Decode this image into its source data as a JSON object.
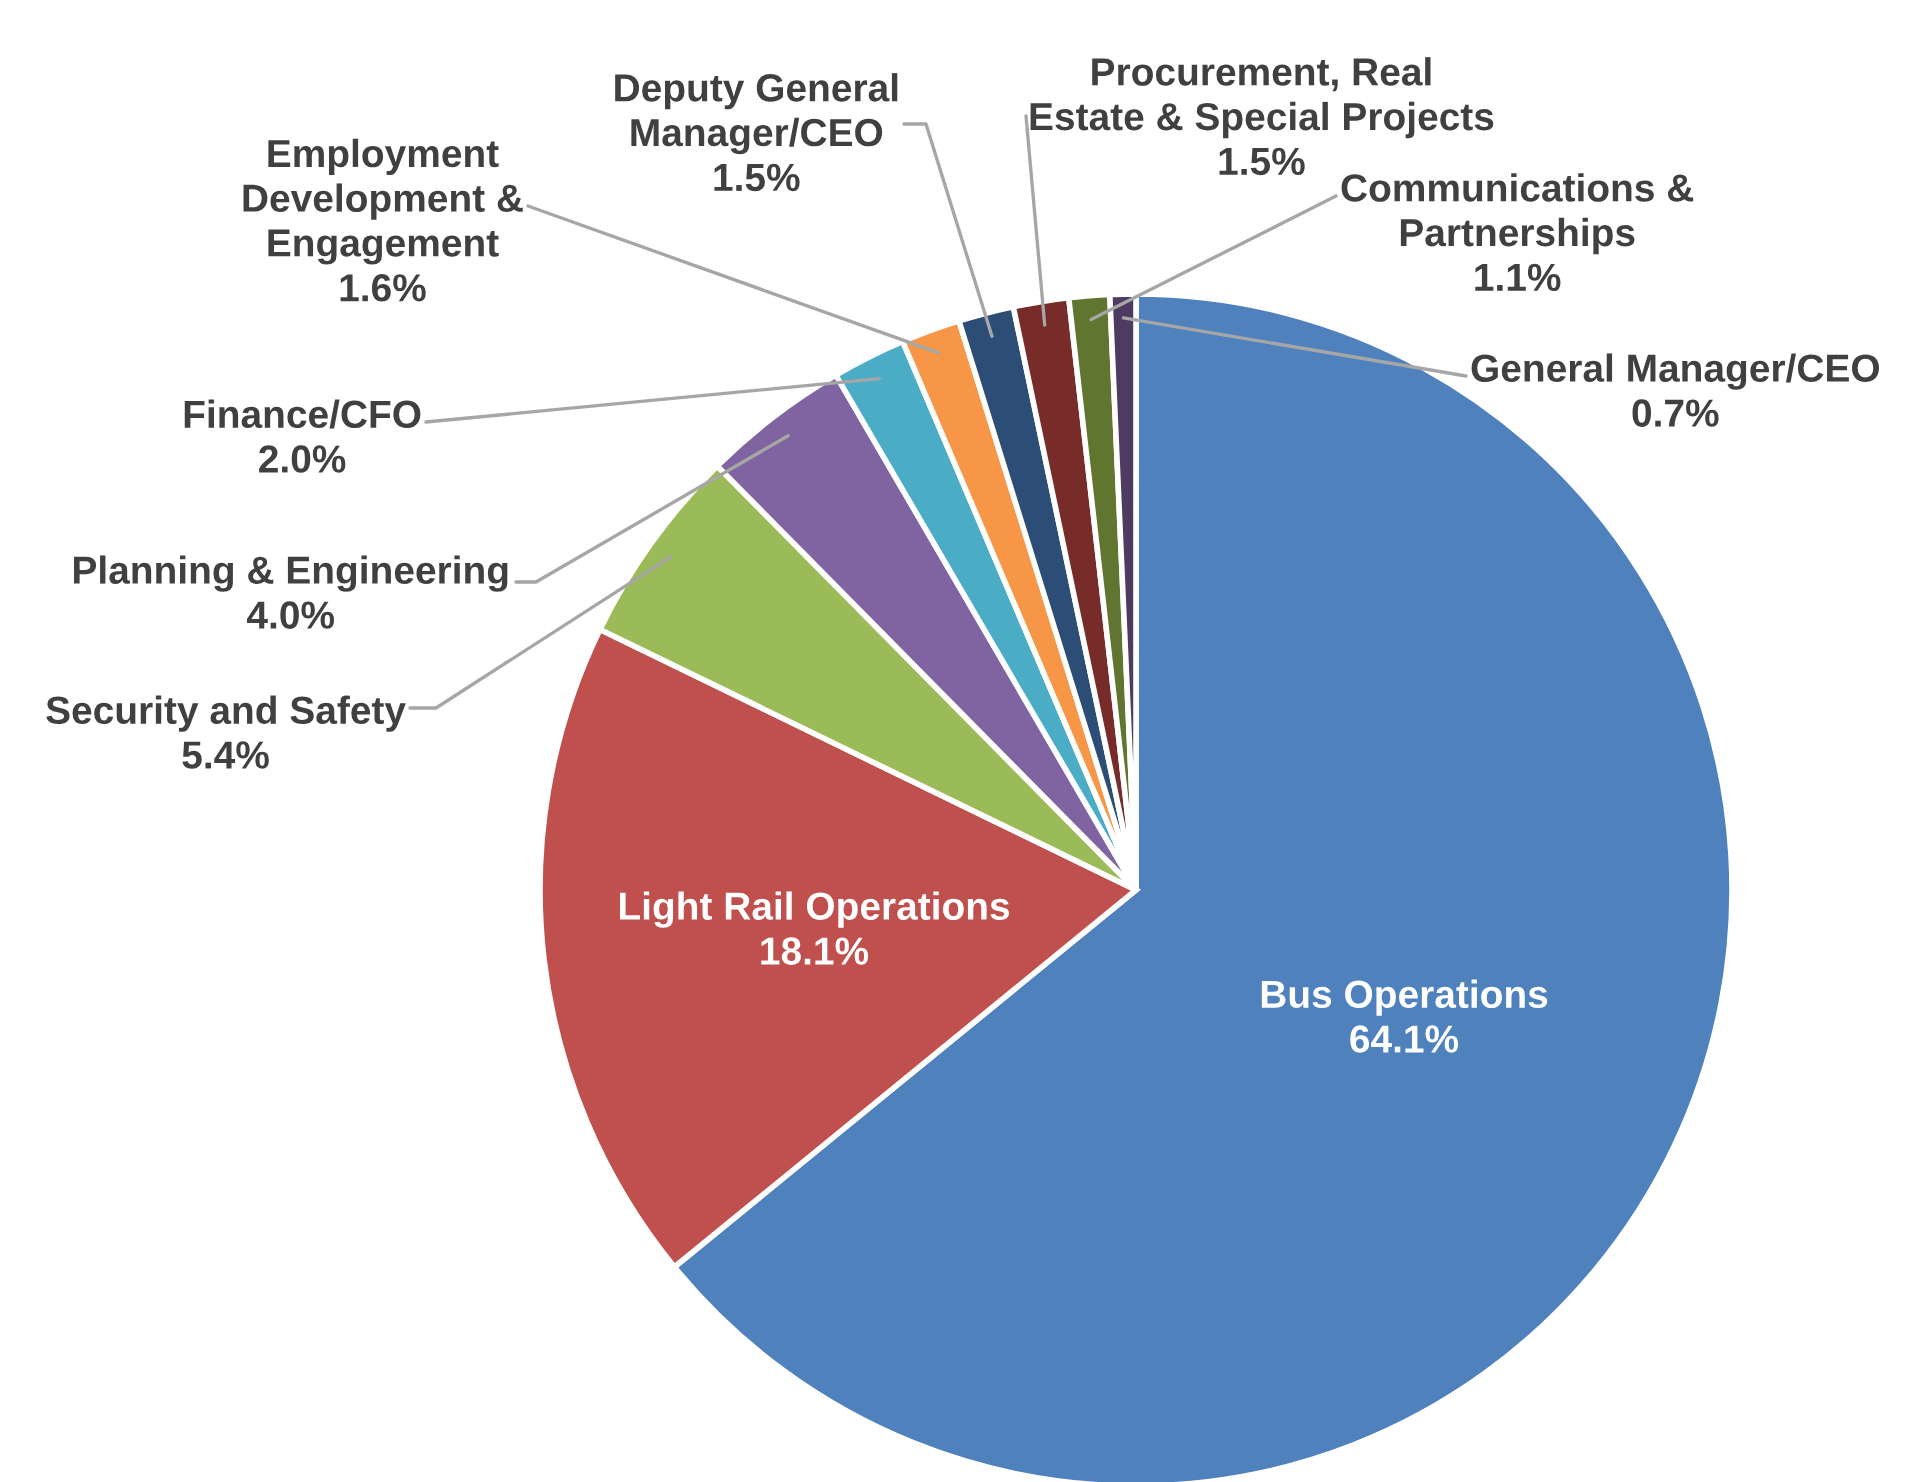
{
  "chart_data": {
    "type": "pie",
    "categories": [
      "Bus Operations",
      "Light Rail Operations",
      "Security and Safety",
      "Planning & Engineering",
      "Finance/CFO",
      "Employment Development & Engagement",
      "Deputy General Manager/CEO",
      "Procurement, Real Estate & Special Projects",
      "Communications & Partnerships",
      "General Manager/CEO"
    ],
    "values": [
      64.1,
      18.1,
      5.4,
      4.0,
      2.0,
      1.6,
      1.5,
      1.5,
      1.1,
      0.7
    ],
    "colors": [
      "#4f81bd",
      "#c0504d",
      "#9bbb59",
      "#8064a2",
      "#4bacc6",
      "#f79646",
      "#2c4d75",
      "#772c2a",
      "#5f7530",
      "#4d3b62"
    ],
    "value_labels": [
      "64.1%",
      "18.1%",
      "5.4%",
      "4.0%",
      "2.0%",
      "1.6%",
      "1.5%",
      "1.5%",
      "1.1%",
      "0.7%"
    ],
    "legend": false
  }
}
